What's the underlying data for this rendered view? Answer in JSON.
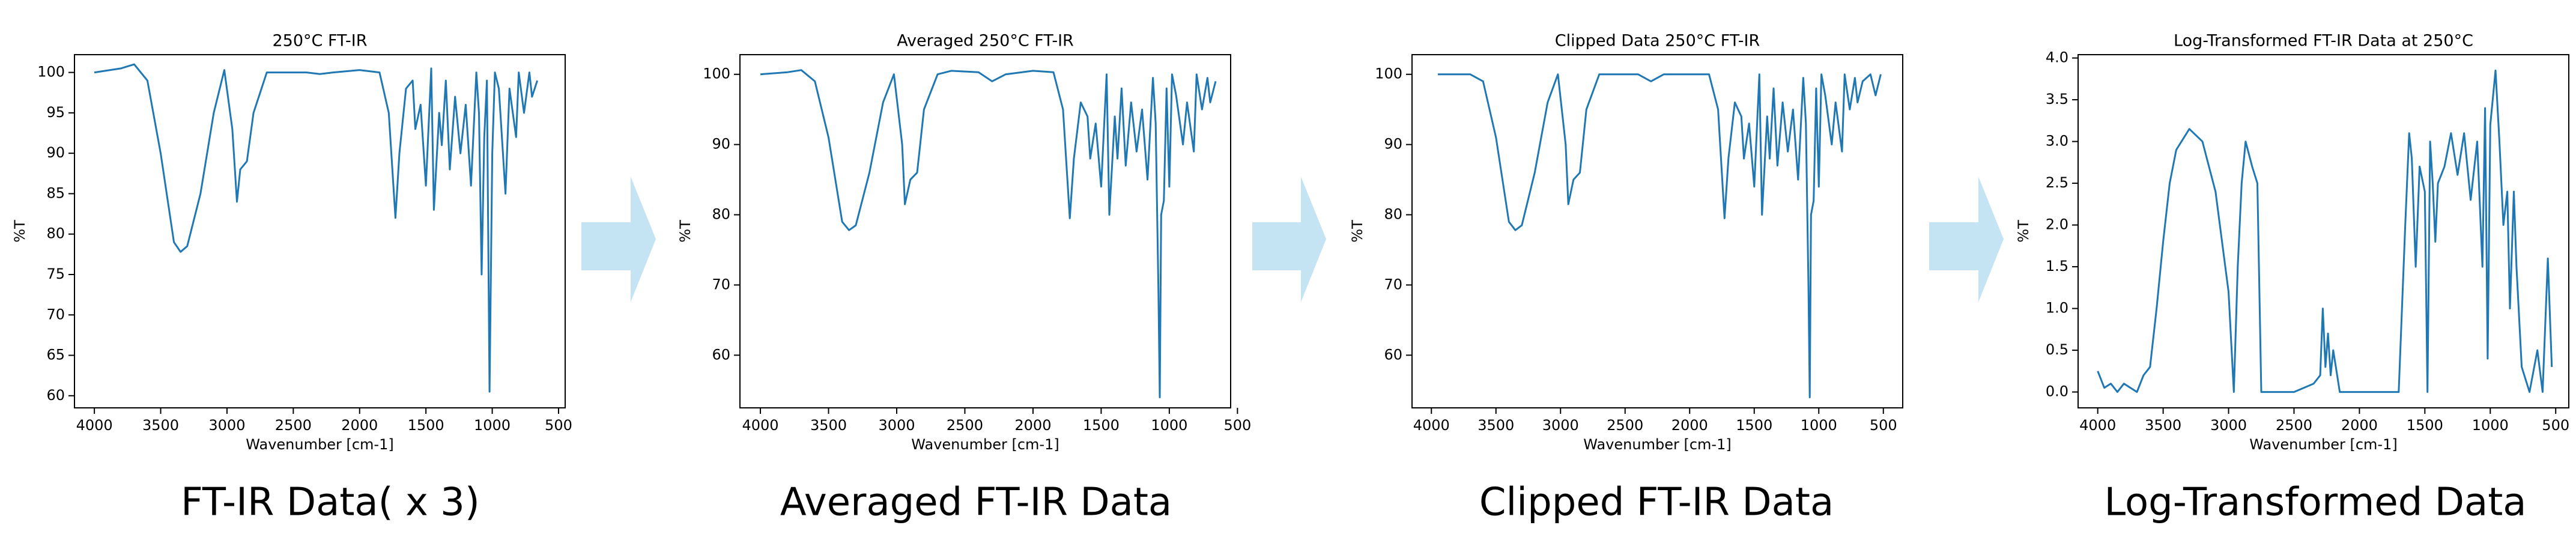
{
  "chart_data": [
    {
      "type": "line",
      "title": "250°C FT-IR",
      "xlabel": "Wavenumber [cm-1]",
      "ylabel": "%T",
      "color": "#1f77b4",
      "x": [
        4000,
        3800,
        3700,
        3600,
        3500,
        3400,
        3350,
        3300,
        3200,
        3100,
        3020,
        2960,
        2925,
        2900,
        2850,
        2800,
        2700,
        2600,
        2400,
        2300,
        2200,
        2000,
        1850,
        1780,
        1730,
        1700,
        1650,
        1600,
        1580,
        1540,
        1500,
        1460,
        1440,
        1400,
        1380,
        1350,
        1320,
        1280,
        1240,
        1200,
        1160,
        1120,
        1100,
        1080,
        1060,
        1040,
        1020,
        1000,
        980,
        950,
        900,
        870,
        820,
        800,
        760,
        720,
        700,
        660
      ],
      "values": [
        100,
        100.5,
        101,
        99,
        90,
        79,
        77.8,
        78.5,
        85,
        95,
        100.3,
        93,
        84,
        88,
        89,
        95,
        100,
        100,
        100,
        99.8,
        100,
        100.3,
        100,
        95,
        82,
        90,
        98,
        99,
        93,
        96,
        86,
        100.5,
        83,
        95,
        91,
        99,
        88,
        97,
        90,
        96,
        86,
        100,
        95,
        75,
        92,
        99,
        60.5,
        90,
        100,
        98,
        85,
        98,
        92,
        100,
        95,
        100,
        97,
        99
      ],
      "xlim": [
        4150,
        450
      ],
      "ylim": [
        58.5,
        102.2
      ],
      "xticks": [
        4000,
        3500,
        3000,
        2500,
        2000,
        1500,
        1000,
        500
      ],
      "yticks": [
        60,
        65,
        70,
        75,
        80,
        85,
        90,
        95,
        100
      ]
    },
    {
      "type": "line",
      "title": "Averaged 250°C FT-IR",
      "xlabel": "Wavenumber [cm-1]",
      "ylabel": "%T",
      "color": "#1f77b4",
      "x": [
        4000,
        3800,
        3700,
        3600,
        3500,
        3400,
        3350,
        3300,
        3200,
        3100,
        3020,
        2960,
        2940,
        2900,
        2850,
        2800,
        2700,
        2600,
        2400,
        2300,
        2200,
        2000,
        1850,
        1780,
        1730,
        1700,
        1650,
        1600,
        1580,
        1540,
        1500,
        1460,
        1440,
        1400,
        1380,
        1350,
        1320,
        1280,
        1240,
        1200,
        1160,
        1120,
        1100,
        1080,
        1070,
        1060,
        1040,
        1020,
        1000,
        980,
        950,
        900,
        870,
        820,
        800,
        760,
        720,
        700,
        660
      ],
      "values": [
        100,
        100.3,
        100.6,
        99,
        91,
        79,
        77.8,
        78.5,
        86,
        96,
        100,
        90,
        81.5,
        85,
        86,
        95,
        100,
        100.5,
        100.3,
        99,
        100,
        100.5,
        100.3,
        95,
        79.5,
        88,
        96,
        94,
        88,
        93,
        84,
        100,
        80,
        94,
        88,
        98,
        87,
        96,
        89,
        95,
        85,
        99.5,
        93,
        69.5,
        54,
        80,
        82,
        98,
        84,
        100,
        97,
        90,
        96,
        89,
        100,
        95,
        99.5,
        96,
        99
      ],
      "xlim": [
        4150,
        550
      ],
      "ylim": [
        52.5,
        102.8
      ],
      "xticks": [
        4000,
        3500,
        3000,
        2500,
        2000,
        1500,
        1000,
        500
      ],
      "yticks": [
        60,
        70,
        80,
        90,
        100
      ]
    },
    {
      "type": "line",
      "title": "Clipped Data 250°C FT-IR",
      "xlabel": "Wavenumber [cm-1]",
      "ylabel": "%T",
      "color": "#1f77b4",
      "x": [
        3950,
        3800,
        3700,
        3600,
        3500,
        3400,
        3350,
        3300,
        3200,
        3100,
        3020,
        2960,
        2940,
        2900,
        2850,
        2800,
        2700,
        2600,
        2400,
        2300,
        2200,
        2000,
        1850,
        1780,
        1730,
        1700,
        1650,
        1600,
        1580,
        1540,
        1500,
        1460,
        1440,
        1400,
        1380,
        1350,
        1320,
        1280,
        1240,
        1200,
        1160,
        1120,
        1100,
        1080,
        1070,
        1060,
        1040,
        1020,
        1000,
        980,
        950,
        900,
        870,
        820,
        800,
        760,
        720,
        700,
        660,
        600,
        560,
        520
      ],
      "values": [
        100,
        100,
        100,
        99,
        91,
        79,
        77.8,
        78.5,
        86,
        96,
        100,
        90,
        81.5,
        85,
        86,
        95,
        100,
        100,
        100,
        99,
        100,
        100,
        100,
        95,
        79.5,
        88,
        96,
        94,
        88,
        93,
        84,
        100,
        80,
        94,
        88,
        98,
        87,
        96,
        89,
        95,
        85,
        99.5,
        93,
        69.5,
        54,
        80,
        82,
        98,
        84,
        100,
        97,
        90,
        96,
        89,
        100,
        95,
        99.5,
        96,
        99,
        100,
        97,
        100
      ],
      "xlim": [
        4150,
        350
      ],
      "ylim": [
        52.5,
        102.8
      ],
      "xticks": [
        4000,
        3500,
        3000,
        2500,
        2000,
        1500,
        1000,
        500
      ],
      "yticks": [
        60,
        70,
        80,
        90,
        100
      ]
    },
    {
      "type": "line",
      "title": "Log-Transformed FT-IR Data at 250°C",
      "xlabel": "Wavenumber [cm-1]",
      "ylabel": "%T",
      "color": "#1f77b4",
      "x": [
        4000,
        3950,
        3900,
        3850,
        3800,
        3700,
        3650,
        3600,
        3550,
        3500,
        3450,
        3400,
        3300,
        3200,
        3100,
        3000,
        2960,
        2930,
        2900,
        2870,
        2820,
        2780,
        2750,
        2500,
        2350,
        2300,
        2280,
        2260,
        2240,
        2220,
        2200,
        2150,
        1700,
        1650,
        1620,
        1600,
        1570,
        1540,
        1500,
        1480,
        1460,
        1440,
        1420,
        1400,
        1350,
        1300,
        1250,
        1200,
        1150,
        1100,
        1060,
        1040,
        1020,
        1000,
        960,
        930,
        900,
        870,
        850,
        820,
        800,
        760,
        700,
        640,
        600,
        560,
        530
      ],
      "values": [
        0.25,
        0.05,
        0.1,
        0,
        0.1,
        0,
        0.2,
        0.3,
        1.0,
        1.8,
        2.5,
        2.9,
        3.15,
        3.0,
        2.4,
        1.2,
        0,
        1.5,
        2.5,
        3.0,
        2.7,
        2.5,
        0,
        0,
        0.1,
        0.2,
        1.0,
        0.3,
        0.7,
        0.2,
        0.5,
        0,
        0,
        2.0,
        3.1,
        2.8,
        1.5,
        2.7,
        2.4,
        0,
        3.0,
        2.5,
        1.8,
        2.5,
        2.7,
        3.1,
        2.6,
        3.1,
        2.3,
        3.0,
        1.5,
        3.4,
        0.4,
        3.2,
        3.85,
        3.0,
        2.0,
        2.4,
        1.0,
        2.4,
        1.5,
        0.3,
        0,
        0.5,
        0,
        1.6,
        0.3
      ],
      "xlim": [
        4150,
        400
      ],
      "ylim": [
        -0.19,
        4.04
      ],
      "xticks": [
        4000,
        3500,
        3000,
        2500,
        2000,
        1500,
        1000,
        500
      ],
      "yticks": [
        {
          "value": 0,
          "label": "0.0"
        },
        0.5,
        {
          "value": 1,
          "label": "1.0"
        },
        1.5,
        {
          "value": 2,
          "label": "2.0"
        },
        2.5,
        {
          "value": 3,
          "label": "3.0"
        },
        3.5,
        {
          "value": 4,
          "label": "4.0"
        }
      ]
    }
  ],
  "captions": [
    "FT-IR Data( x 3)",
    "Averaged FT-IR Data",
    "Clipped FT-IR Data",
    "Log-Transformed Data"
  ]
}
